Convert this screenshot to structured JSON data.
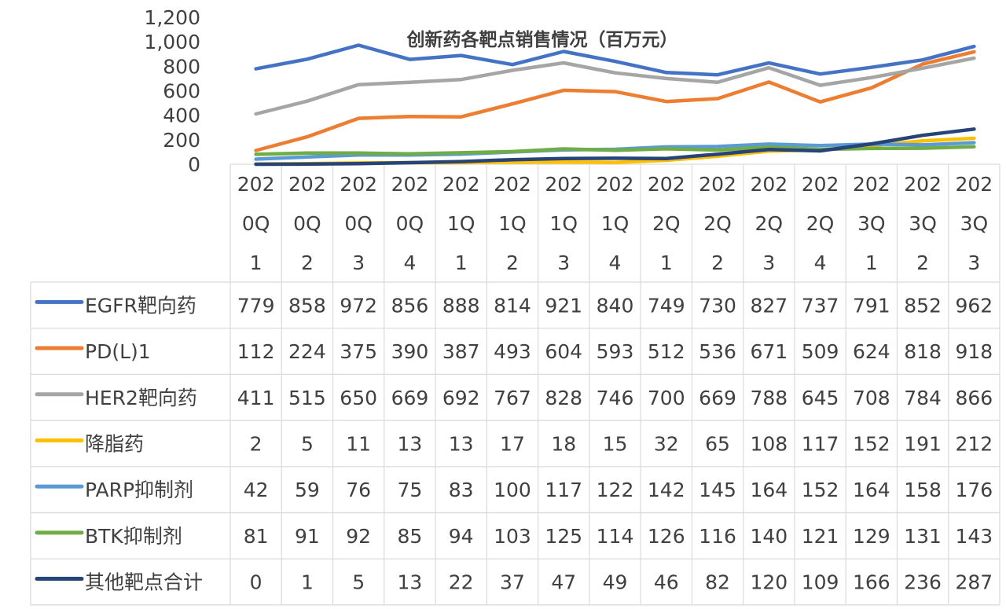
{
  "chart_data": {
    "type": "line",
    "title": "创新药各靶点销售情况（百万元）",
    "ylim": [
      0,
      1200
    ],
    "yticks": [
      0,
      200,
      400,
      600,
      800,
      1000,
      1200
    ],
    "ytick_labels": [
      "0",
      "200",
      "400",
      "600",
      "800",
      "1,000",
      "1,200"
    ],
    "categories": [
      [
        "202",
        "0Q",
        "1"
      ],
      [
        "202",
        "0Q",
        "2"
      ],
      [
        "202",
        "0Q",
        "3"
      ],
      [
        "202",
        "0Q",
        "4"
      ],
      [
        "202",
        "1Q",
        "1"
      ],
      [
        "202",
        "1Q",
        "2"
      ],
      [
        "202",
        "1Q",
        "3"
      ],
      [
        "202",
        "1Q",
        "4"
      ],
      [
        "202",
        "2Q",
        "1"
      ],
      [
        "202",
        "2Q",
        "2"
      ],
      [
        "202",
        "2Q",
        "3"
      ],
      [
        "202",
        "2Q",
        "4"
      ],
      [
        "202",
        "3Q",
        "1"
      ],
      [
        "202",
        "3Q",
        "2"
      ],
      [
        "202",
        "3Q",
        "3"
      ]
    ],
    "grid": false,
    "legend": "data-table",
    "series": [
      {
        "name": "EGFR靶向药",
        "color": "#4472C4",
        "values": [
          779,
          858,
          972,
          856,
          888,
          814,
          921,
          840,
          749,
          730,
          827,
          737,
          791,
          852,
          962
        ]
      },
      {
        "name": "PD(L)1",
        "color": "#ED7D31",
        "values": [
          112,
          224,
          375,
          390,
          387,
          493,
          604,
          593,
          512,
          536,
          671,
          509,
          624,
          818,
          918
        ]
      },
      {
        "name": "HER2靶向药",
        "color": "#A5A5A5",
        "values": [
          411,
          515,
          650,
          669,
          692,
          767,
          828,
          746,
          700,
          669,
          788,
          645,
          708,
          784,
          866
        ]
      },
      {
        "name": "降脂药",
        "color": "#FFC000",
        "values": [
          2,
          5,
          11,
          13,
          13,
          17,
          18,
          15,
          32,
          65,
          108,
          117,
          152,
          191,
          212
        ]
      },
      {
        "name": "PARP抑制剂",
        "color": "#5B9BD5",
        "values": [
          42,
          59,
          76,
          75,
          83,
          100,
          117,
          122,
          142,
          145,
          164,
          152,
          164,
          158,
          176
        ]
      },
      {
        "name": "BTK抑制剂",
        "color": "#70AD47",
        "values": [
          81,
          91,
          92,
          85,
          94,
          103,
          125,
          114,
          126,
          116,
          140,
          121,
          129,
          131,
          143
        ]
      },
      {
        "name": "其他靶点合计",
        "color": "#264478",
        "values": [
          0,
          1,
          5,
          13,
          22,
          37,
          47,
          49,
          46,
          82,
          120,
          109,
          166,
          236,
          287
        ]
      }
    ]
  }
}
